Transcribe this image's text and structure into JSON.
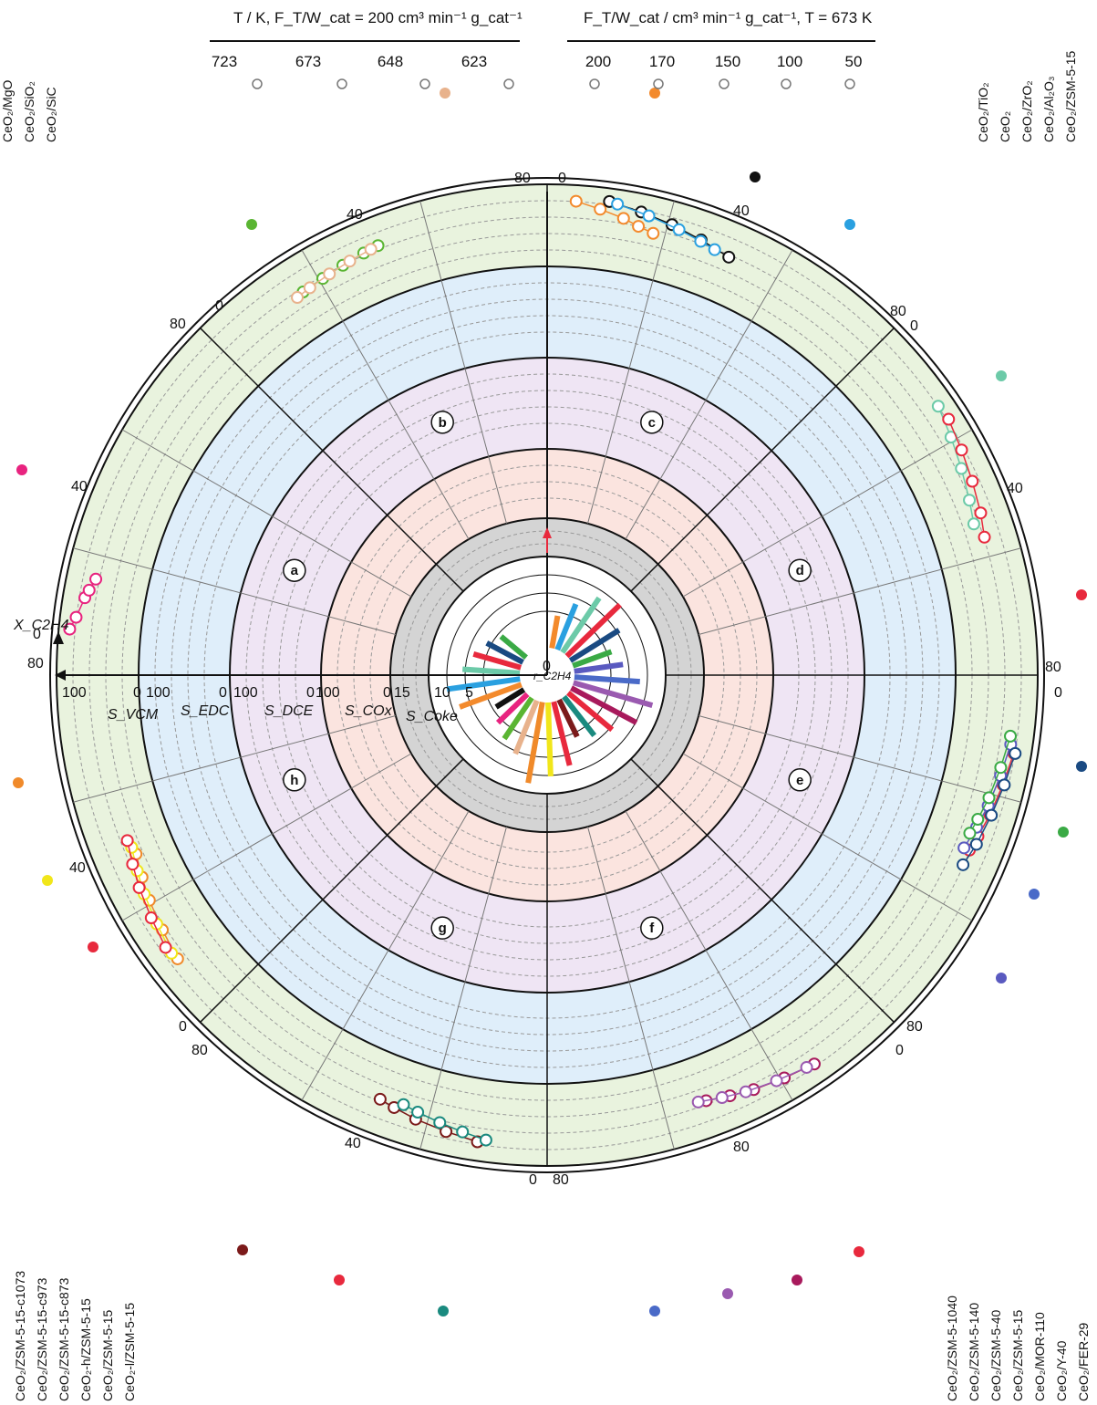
{
  "legend": {
    "temperature": {
      "title": "T / K, F_T/W_cat = 200 cm³ min⁻¹ g_cat⁻¹",
      "values": [
        "723",
        "673",
        "648",
        "623"
      ]
    },
    "flow": {
      "title": "F_T/W_cat / cm³ min⁻¹ g_cat⁻¹, T = 673 K",
      "values": [
        "200",
        "170",
        "150",
        "100",
        "50"
      ]
    }
  },
  "axes": {
    "x_label": "X_C2H4",
    "s_labels": [
      "S_VCM",
      "S_EDC",
      "S_DCE",
      "S_COx",
      "S_Coke"
    ],
    "r_label": "r_C2H4",
    "r_ticks": [
      "0",
      "5",
      "10",
      "15"
    ],
    "x_ticks": [
      "0",
      "40",
      "80"
    ],
    "s_ticks": [
      "100",
      "0"
    ],
    "panel_ticks": [
      "80",
      "0",
      "40",
      "40",
      "80",
      "0",
      "80",
      "0",
      "40",
      "80",
      "0",
      "40",
      "0",
      "80",
      "40",
      "0",
      "80"
    ]
  },
  "panels": [
    "a",
    "b",
    "c",
    "d",
    "e",
    "f",
    "g",
    "h"
  ],
  "catalysts": {
    "top_left": [
      "CeO₂/MgO",
      "CeO₂/SiO₂",
      "CeO₂/SiC"
    ],
    "top_right": [
      "CeO₂/TiO₂",
      "CeO₂",
      "CeO₂/ZrO₂",
      "CeO₂/Al₂O₃",
      "CeO₂/ZSM-5-15"
    ],
    "bottom_left": [
      "CeO₂/ZSM-5-15-c1073",
      "CeO₂/ZSM-5-15-c973",
      "CeO₂/ZSM-5-15-c873",
      "CeO₂-h/ZSM-5-15",
      "CeO₂/ZSM-5-15",
      "CeO₂-l/ZSM-5-15"
    ],
    "bottom_right": [
      "CeO₂/ZSM-5-1040",
      "CeO₂/ZSM-5-140",
      "CeO₂/ZSM-5-40",
      "CeO₂/ZSM-5-15",
      "CeO₂/MOR-110",
      "CeO₂/Y-40",
      "CeO₂/FER-29"
    ]
  },
  "colors": {
    "MgO": "#e8237f",
    "SiO2": "#5ab532",
    "SiC": "#e8b28c",
    "TiO2": "#f38a2c",
    "CeO2": "#111111",
    "ZrO2": "#2aa0e0",
    "Al2O3": "#6ccaa8",
    "ZSM5_15": "#e8293d",
    "c1073": "#f08a2a",
    "c973": "#f1e61a",
    "c873": "#e8293d",
    "h": "#7b1a1a",
    "ZSM5_15b": "#e8293d",
    "l": "#1a8a7f",
    "ZSM1040": "#e8293d",
    "ZSM140": "#a81a5c",
    "ZSM40": "#9a5ab0",
    "ZSM15": "#4a6ac8",
    "MOR110": "#5a5ac0",
    "Y40": "#3aaa45",
    "FER29": "#1a4a82",
    "band_coke": "#d4d4d4",
    "band_cox": "#fbe4df",
    "band_dce": "#efe5f4",
    "band_edc": "#dfeefa",
    "band_vcm": "#e9f3de"
  },
  "chart_data": {
    "type": "scatter",
    "title": "",
    "rings": [
      "r_C2H4",
      "S_Coke",
      "S_COx",
      "S_DCE",
      "S_EDC",
      "S_VCM"
    ],
    "series": [
      {
        "name": "CeO₂/MgO",
        "panel": "a",
        "x": [
          6,
          9,
          14,
          16,
          19
        ],
        "y": [
          95,
          88,
          80,
          76,
          70
        ]
      },
      {
        "name": "CeO₂/SiO₂",
        "panel": "b",
        "x": [
          20,
          26,
          32,
          38,
          42
        ],
        "y": [
          60,
          62,
          65,
          68,
          70
        ]
      },
      {
        "name": "CeO₂/SiC",
        "panel": "b",
        "x": [
          18,
          22,
          28,
          34,
          40
        ],
        "y": [
          58,
          60,
          63,
          66,
          69
        ]
      },
      {
        "name": "CeO₂/TiO₂",
        "panel": "c",
        "x": [
          2,
          8,
          14,
          18,
          22
        ],
        "y": [
          88,
          80,
          72,
          65,
          60
        ]
      },
      {
        "name": "CeO₂",
        "panel": "c",
        "x": [
          10,
          18,
          26,
          34,
          42
        ],
        "y": [
          92,
          85,
          78,
          70,
          62
        ]
      },
      {
        "name": "CeO₂/ZrO₂",
        "panel": "c",
        "x": [
          12,
          20,
          28,
          34,
          38
        ],
        "y": [
          90,
          82,
          74,
          68,
          64
        ]
      },
      {
        "name": "CeO₂/Al₂O₃",
        "panel": "d",
        "x": [
          16,
          24,
          32,
          40,
          46
        ],
        "y": [
          88,
          80,
          72,
          64,
          58
        ]
      },
      {
        "name": "CeO₂/ZSM-5-15",
        "panel": "d",
        "x": [
          20,
          28,
          36,
          44,
          50
        ],
        "y": [
          90,
          84,
          78,
          72,
          66
        ]
      },
      {
        "name": "CeO₂/ZSM-5-1040",
        "panel": "e",
        "x": [
          14,
          22,
          30,
          36,
          40
        ],
        "y": [
          86,
          80,
          74,
          68,
          64
        ]
      },
      {
        "name": "CeO₂/ZSM-5-140",
        "panel": "f",
        "x": [
          16,
          24,
          32,
          38,
          44
        ],
        "y": [
          84,
          78,
          72,
          66,
          60
        ]
      },
      {
        "name": "CeO₂/ZSM-5-40",
        "panel": "f",
        "x": [
          18,
          26,
          34,
          40,
          46
        ],
        "y": [
          82,
          76,
          70,
          64,
          58
        ]
      },
      {
        "name": "CeO₂/MOR-110",
        "panel": "e",
        "x": [
          12,
          20,
          28,
          34,
          40
        ],
        "y": [
          80,
          74,
          68,
          62,
          56
        ]
      },
      {
        "name": "CeO₂/Y-40",
        "panel": "e",
        "x": [
          10,
          18,
          26,
          32,
          36
        ],
        "y": [
          78,
          72,
          66,
          60,
          56
        ]
      },
      {
        "name": "CeO₂/FER-29",
        "panel": "e",
        "x": [
          14,
          22,
          30,
          38,
          44
        ],
        "y": [
          88,
          82,
          76,
          70,
          64
        ]
      },
      {
        "name": "CeO₂-h/ZSM-5-15",
        "panel": "g",
        "x": [
          12,
          20,
          28,
          34,
          38
        ],
        "y": [
          84,
          78,
          72,
          66,
          62
        ]
      },
      {
        "name": "CeO₂-l/ZSM-5-15",
        "panel": "g",
        "x": [
          10,
          16,
          22,
          28,
          32
        ],
        "y": [
          80,
          74,
          68,
          62,
          58
        ]
      },
      {
        "name": "CeO₂/ZSM-5-15-c1073",
        "panel": "h",
        "x": [
          10,
          18,
          26,
          32,
          38
        ],
        "y": [
          76,
          70,
          64,
          58,
          52
        ]
      },
      {
        "name": "CeO₂/ZSM-5-15-c973",
        "panel": "h",
        "x": [
          12,
          20,
          28,
          34,
          40
        ],
        "y": [
          78,
          72,
          66,
          60,
          54
        ]
      },
      {
        "name": "CeO₂/ZSM-5-15-c873",
        "panel": "h",
        "x": [
          14,
          22,
          30,
          36,
          42
        ],
        "y": [
          80,
          74,
          68,
          62,
          56
        ]
      }
    ],
    "rate_bars": {
      "label": "r_C2H4",
      "values": [
        4,
        6,
        8,
        9,
        7,
        5,
        6,
        8,
        10,
        9,
        7,
        6,
        5,
        8,
        9,
        10,
        7,
        6,
        5,
        4,
        8,
        9,
        7,
        6,
        5,
        4
      ]
    }
  }
}
